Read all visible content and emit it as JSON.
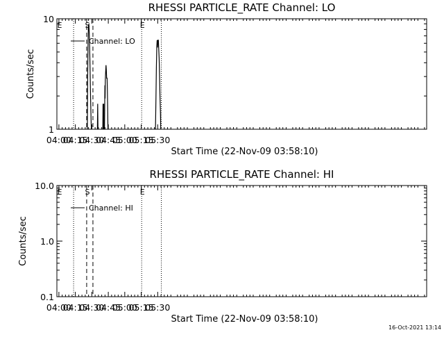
{
  "colors": {
    "background": "#ffffff",
    "foreground": "#000000"
  },
  "timestamp": "16-Oct-2021 13:14",
  "chart_data": [
    {
      "type": "line",
      "title": "RHESSI PARTICLE_RATE Channel: LO",
      "xlabel": "Start Time (22-Nov-09 03:58:10)",
      "ylabel": "Counts/sec",
      "x_unit": "minutes of day (UT)",
      "xlim": [
        238.17,
        575.0
      ],
      "ylim": [
        1,
        10
      ],
      "yscale": "log",
      "x_ticks": [
        240,
        255,
        270,
        285,
        300,
        315,
        330
      ],
      "x_tick_labels": [
        "04:00",
        "04:15",
        "04:30",
        "04:45",
        "05:00",
        "05:15",
        "05:30"
      ],
      "y_ticks": [
        1,
        10
      ],
      "y_tick_labels": [
        "1",
        "10"
      ],
      "legend": {
        "position": "top-left",
        "entries": [
          "Channel: LO"
        ]
      },
      "vlines": [
        {
          "x": 253.4,
          "style": "dotted",
          "label": ""
        },
        {
          "x": 265.3,
          "style": "dashed",
          "label": "S"
        },
        {
          "x": 271.0,
          "style": "dashed",
          "label": ""
        },
        {
          "x": 315.4,
          "style": "dotted",
          "label": "E"
        },
        {
          "x": 333.3,
          "style": "dotted",
          "label": ""
        }
      ],
      "edge_markers": [
        {
          "x": 238.17,
          "label": "E"
        }
      ],
      "series": [
        {
          "name": "Channel: LO",
          "segments": [
            [
              [
                265.9,
                1
              ],
              [
                266.2,
                3.0
              ],
              [
                266.6,
                6.5
              ],
              [
                266.9,
                8.8
              ],
              [
                267.3,
                8.9
              ],
              [
                267.6,
                7.6
              ],
              [
                268.0,
                5.6
              ],
              [
                268.4,
                3.6
              ],
              [
                268.8,
                2.0
              ],
              [
                269.3,
                1.2
              ],
              [
                269.6,
                1
              ]
            ],
            [
              [
                275.1,
                1
              ],
              [
                275.3,
                1.7
              ],
              [
                275.6,
                1
              ]
            ],
            [
              [
                280.0,
                1
              ],
              [
                280.2,
                1.7
              ],
              [
                280.4,
                1
              ]
            ],
            [
              [
                280.7,
                1
              ],
              [
                280.9,
                1.7
              ],
              [
                281.1,
                1
              ]
            ],
            [
              [
                281.5,
                1
              ],
              [
                281.7,
                1.5
              ],
              [
                281.9,
                2.5
              ],
              [
                282.1,
                1.9
              ],
              [
                282.3,
                2.8
              ],
              [
                282.6,
                3.3
              ],
              [
                282.9,
                3.8
              ],
              [
                283.2,
                3.4
              ],
              [
                283.5,
                2.9
              ],
              [
                283.9,
                2.9
              ],
              [
                284.2,
                2.2
              ],
              [
                284.5,
                1.4
              ],
              [
                284.7,
                1
              ]
            ],
            [
              [
                328.0,
                1
              ],
              [
                328.4,
                1.9
              ],
              [
                328.8,
                3.6
              ],
              [
                329.2,
                5.5
              ],
              [
                329.5,
                6.4
              ],
              [
                329.8,
                5.5
              ],
              [
                330.2,
                6.4
              ],
              [
                330.6,
                6.4
              ],
              [
                330.9,
                5.5
              ],
              [
                331.3,
                4.4
              ],
              [
                331.7,
                3.1
              ],
              [
                332.1,
                2.0
              ],
              [
                332.5,
                1.4
              ],
              [
                332.8,
                1
              ]
            ]
          ]
        }
      ]
    },
    {
      "type": "line",
      "title": "RHESSI PARTICLE_RATE Channel: HI",
      "xlabel": "Start Time (22-Nov-09 03:58:10)",
      "ylabel": "Counts/sec",
      "x_unit": "minutes of day (UT)",
      "xlim": [
        238.17,
        575.0
      ],
      "ylim": [
        0.1,
        10
      ],
      "yscale": "log",
      "x_ticks": [
        240,
        255,
        270,
        285,
        300,
        315,
        330
      ],
      "x_tick_labels": [
        "04:00",
        "04:15",
        "04:30",
        "04:45",
        "05:00",
        "05:15",
        "05:30"
      ],
      "y_ticks": [
        0.1,
        1,
        10
      ],
      "y_tick_labels": [
        "0.1",
        "1.0",
        "10.0"
      ],
      "legend": {
        "position": "top-left",
        "entries": [
          "Channel: HI"
        ]
      },
      "vlines": [
        {
          "x": 253.4,
          "style": "dotted",
          "label": ""
        },
        {
          "x": 265.3,
          "style": "dashed",
          "label": "S"
        },
        {
          "x": 271.0,
          "style": "dashed",
          "label": ""
        },
        {
          "x": 315.4,
          "style": "dotted",
          "label": "E"
        },
        {
          "x": 333.3,
          "style": "dotted",
          "label": ""
        }
      ],
      "edge_markers": [
        {
          "x": 238.17,
          "label": "E"
        }
      ],
      "series": [
        {
          "name": "Channel: HI",
          "segments": []
        }
      ]
    }
  ]
}
